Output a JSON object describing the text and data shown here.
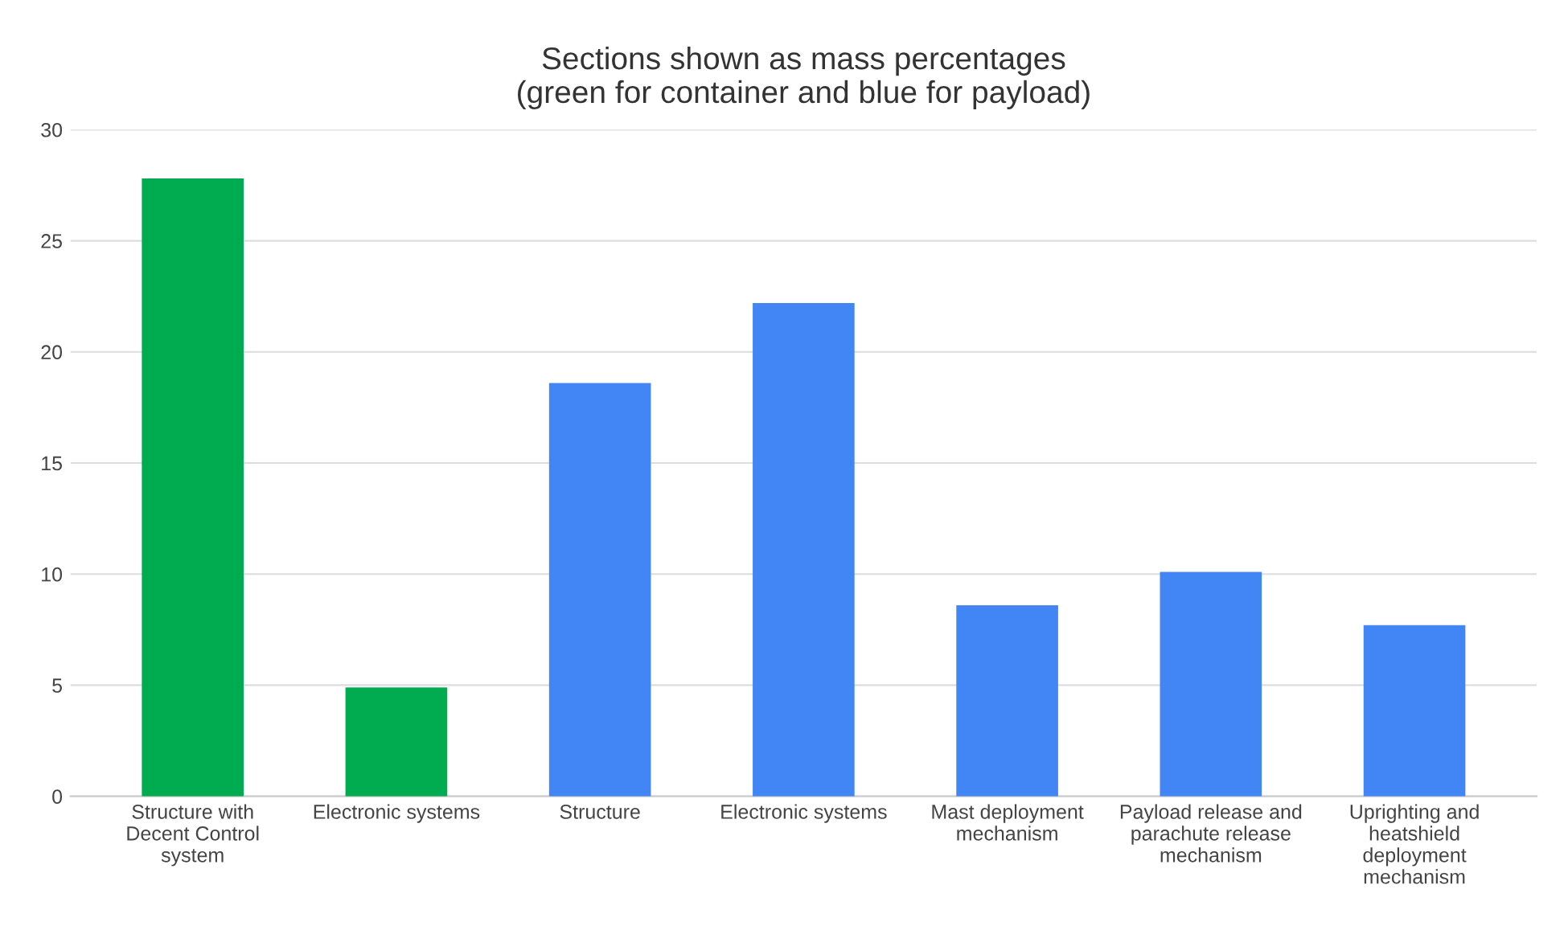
{
  "chart_data": {
    "type": "bar",
    "title": "Sections shown as mass percentages\n(green for container and blue for payload)",
    "categories": [
      "Structure with Decent Control system",
      "Electronic systems",
      "Structure",
      "Electronic systems",
      "Mast deployment mechanism",
      "Payload release and parachute release mechanism",
      "Uprighting and heatshield deployment mechanism"
    ],
    "values": [
      27.8,
      4.9,
      18.6,
      22.2,
      8.6,
      10.1,
      7.7
    ],
    "colors": [
      "#00ac4f",
      "#00ac4f",
      "#4285f4",
      "#4285f4",
      "#4285f4",
      "#4285f4",
      "#4285f4"
    ],
    "ylim": [
      0,
      30
    ],
    "yticks": [
      0,
      5,
      10,
      15,
      20,
      25,
      30
    ],
    "grid": "y"
  }
}
